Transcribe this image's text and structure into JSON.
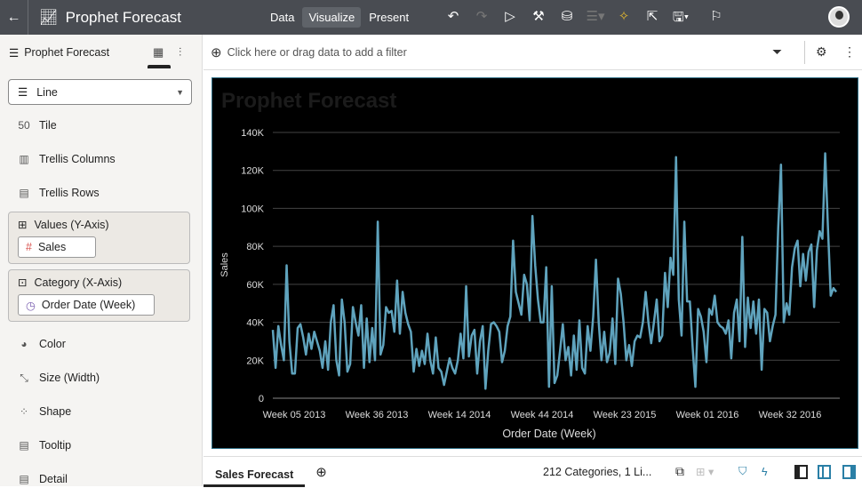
{
  "header": {
    "title": "Prophet Forecast",
    "modes": [
      "Data",
      "Visualize",
      "Present"
    ],
    "active_mode": "Visualize"
  },
  "left_panel": {
    "title": "Prophet Forecast",
    "chart_type": "Line",
    "items": [
      "Tile",
      "Trellis Columns",
      "Trellis Rows"
    ],
    "values_well": {
      "label": "Values (Y-Axis)",
      "pill": "Sales"
    },
    "category_well": {
      "label": "Category (X-Axis)",
      "pill": "Order Date (Week)"
    },
    "items2": [
      "Color",
      "Size (Width)",
      "Shape",
      "Tooltip",
      "Detail"
    ]
  },
  "filter_bar": {
    "placeholder": "Click here or drag data to add a filter"
  },
  "bottom": {
    "tab": "Sales Forecast",
    "status": "212 Categories, 1 Li..."
  },
  "chart_data": {
    "type": "line",
    "title": "Prophet Forecast",
    "xlabel": "Order Date (Week)",
    "ylabel": "Sales",
    "ylim": [
      0,
      140000
    ],
    "yticks": [
      "0",
      "20K",
      "40K",
      "60K",
      "80K",
      "100K",
      "120K",
      "140K"
    ],
    "xtick_labels": [
      "Week 05 2013",
      "Week 36 2013",
      "Week 14 2014",
      "Week 44 2014",
      "Week 23 2015",
      "Week 01 2016",
      "Week 32 2016"
    ],
    "grid": true,
    "line_color": "#5fa3bd",
    "series": [
      {
        "values_k": [
          36,
          16,
          38,
          28,
          20,
          70,
          30,
          13,
          13,
          37,
          39,
          32,
          23,
          34,
          26,
          35,
          30,
          25,
          16,
          30,
          15,
          40,
          49,
          20,
          12,
          52,
          40,
          14,
          18,
          48,
          40,
          33,
          49,
          16,
          42,
          19,
          37,
          20,
          93,
          23,
          28,
          48,
          45,
          46,
          35,
          62,
          34,
          56,
          45,
          39,
          35,
          14,
          26,
          17,
          25,
          18,
          34,
          20,
          13,
          32,
          16,
          14,
          7,
          14,
          21,
          16,
          13,
          20,
          34,
          21,
          59,
          22,
          33,
          36,
          13,
          30,
          38,
          5,
          25,
          39,
          40,
          38,
          35,
          19,
          25,
          38,
          43,
          83,
          56,
          50,
          44,
          65,
          60,
          41,
          96,
          70,
          52,
          40,
          40,
          69,
          6,
          59,
          8,
          12,
          25,
          39,
          20,
          27,
          12,
          33,
          15,
          41,
          16,
          13,
          38,
          25,
          43,
          73,
          40,
          20,
          35,
          19,
          24,
          42,
          18,
          63,
          55,
          40,
          20,
          28,
          17,
          30,
          33,
          32,
          40,
          56,
          40,
          29,
          40,
          52,
          30,
          33,
          66,
          48,
          74,
          65,
          127,
          52,
          33,
          93,
          51,
          51,
          27,
          6,
          47,
          43,
          35,
          19,
          47,
          44,
          54,
          40,
          38,
          37,
          34,
          41,
          21,
          45,
          52,
          30,
          85,
          27,
          53,
          37,
          51,
          34,
          52,
          15,
          47,
          45,
          30,
          38,
          44,
          90,
          123,
          40,
          50,
          44,
          69,
          79,
          83,
          59,
          76,
          62,
          77,
          81,
          48,
          78,
          88,
          84,
          129,
          90,
          54,
          58,
          56
        ]
      }
    ]
  }
}
